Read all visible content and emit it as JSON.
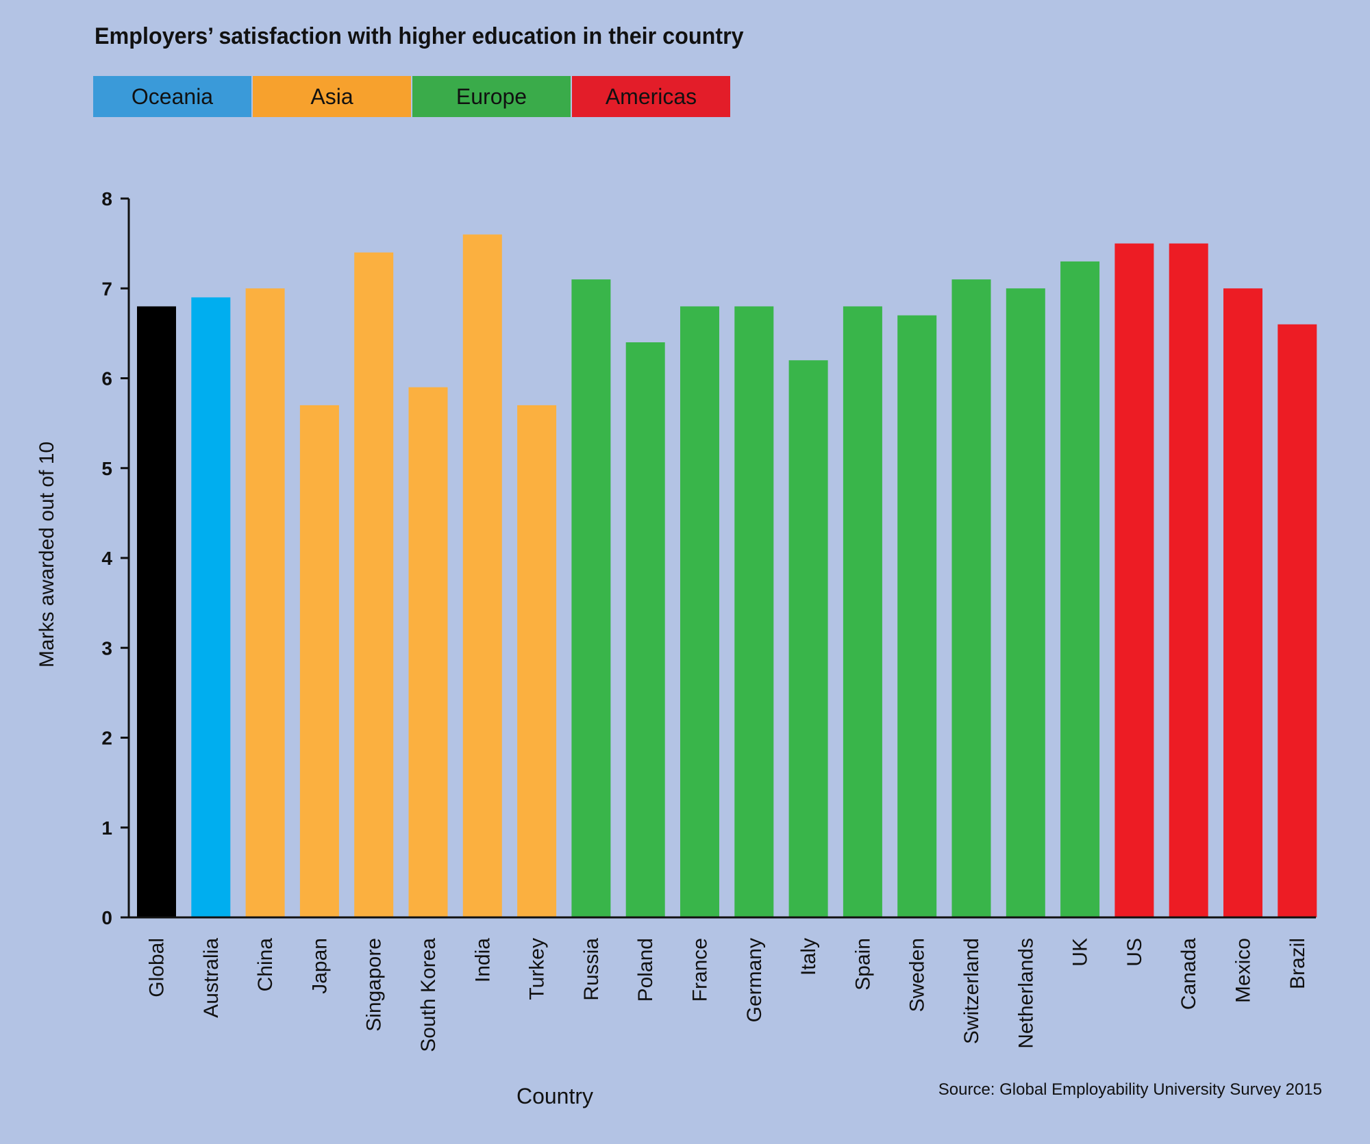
{
  "chart_data": {
    "type": "bar",
    "title": "Employers’ satisfaction with higher education in their country",
    "xlabel": "Country",
    "ylabel": "Marks awarded out of 10",
    "ylim": [
      0,
      8
    ],
    "yticks": [
      0,
      1,
      2,
      3,
      4,
      5,
      6,
      7,
      8
    ],
    "categories": [
      "Global",
      "Australia",
      "China",
      "Japan",
      "Singapore",
      "South Korea",
      "India",
      "Turkey",
      "Russia",
      "Poland",
      "France",
      "Germany",
      "Italy",
      "Spain",
      "Sweden",
      "Switzerland",
      "Netherlands",
      "UK",
      "US",
      "Canada",
      "Mexico",
      "Brazil"
    ],
    "values": [
      6.8,
      6.9,
      7.0,
      5.7,
      7.4,
      5.9,
      7.6,
      5.7,
      7.1,
      6.4,
      6.8,
      6.8,
      6.2,
      6.8,
      6.7,
      7.1,
      7.0,
      7.3,
      7.5,
      7.5,
      7.0,
      6.6
    ],
    "regions": [
      "Global",
      "Oceania",
      "Asia",
      "Asia",
      "Asia",
      "Asia",
      "Asia",
      "Asia",
      "Europe",
      "Europe",
      "Europe",
      "Europe",
      "Europe",
      "Europe",
      "Europe",
      "Europe",
      "Europe",
      "Europe",
      "Americas",
      "Americas",
      "Americas",
      "Americas"
    ],
    "legend": [
      {
        "label": "Oceania",
        "color": "#3a9ad9"
      },
      {
        "label": "Asia",
        "color": "#f7a12d"
      },
      {
        "label": "Europe",
        "color": "#3aab4a"
      },
      {
        "label": "Americas",
        "color": "#e31d29"
      }
    ],
    "bar_colors": {
      "Global": "#000000",
      "Oceania": "#00aeef",
      "Asia": "#fbb040",
      "Europe": "#39b54a",
      "Americas": "#ed1c24"
    }
  },
  "source": "Source: Global Employability University Survey 2015"
}
